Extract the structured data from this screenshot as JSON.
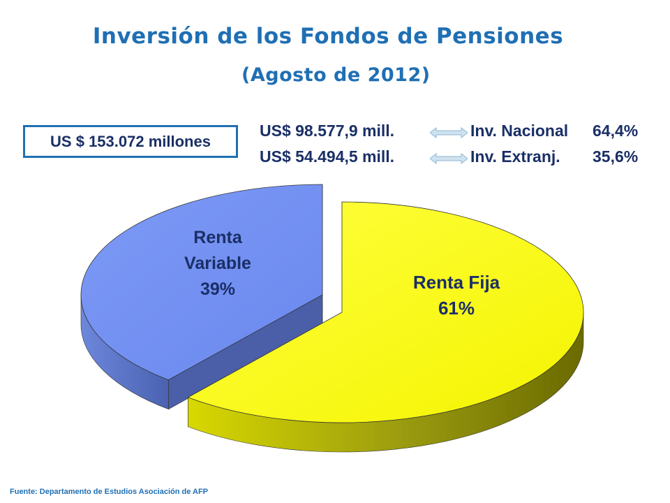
{
  "header": {
    "title": "Inversión de los Fondos de Pensiones",
    "subtitle": "(Agosto de 2012)"
  },
  "summary": {
    "total": "US $ 153.072 millones",
    "rows": [
      {
        "amount": "US$ 98.577,9 mill.",
        "label": "Inv. Nacional",
        "pct": "64,4%"
      },
      {
        "amount": "US$ 54.494,5 mill.",
        "label": "Inv. Extranj.",
        "pct": "35,6%"
      }
    ]
  },
  "chart_data": {
    "type": "pie",
    "style": "3d-exploded",
    "categories": [
      "Renta Fija",
      "Renta Variable"
    ],
    "values": [
      61,
      39
    ],
    "labels": [
      {
        "name": "Renta Fija",
        "value": "61%"
      },
      {
        "name": "Renta Variable",
        "value": "39%"
      }
    ],
    "colors": [
      "#ffff00",
      "#6f8ff2"
    ],
    "side_colors": [
      "#b8b800",
      "#4a5fa8"
    ],
    "legend": "none"
  },
  "footer": {
    "source": "Fuente: Departamento  de Estudios Asociación de AFP"
  },
  "colors": {
    "title": "#1f6fb4",
    "text_dark": "#1a2f66",
    "arrow": "#9fc3dc"
  }
}
